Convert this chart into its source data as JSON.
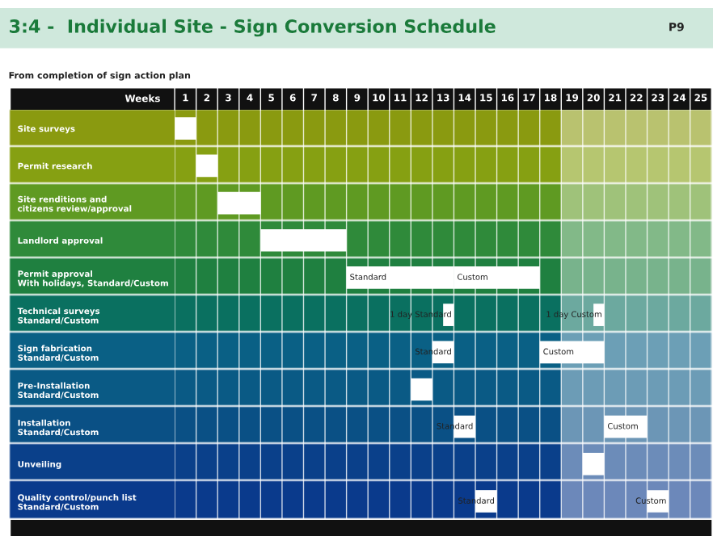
{
  "chart_data": {
    "type": "bar",
    "orientation": "horizontal",
    "title": "3:4 -  Individual Site - Sign Conversion Schedule",
    "subtitle": "From completion of sign action plan",
    "xlabel": "Weeks",
    "annotations": [
      "P9"
    ],
    "categories": [
      "Site surveys",
      "Permit research",
      "Site renditions and\ncitizens review/approval",
      "Landlord approval",
      "Permit approval\nWith holidays, Standard/Custom",
      "Technical surveys\nStandard/Custom",
      "Sign fabrication\nStandard/Custom",
      "Pre-Installation\nStandard/Custom",
      "Installation\nStandard/Custom",
      "Unveiling",
      "Quality control/punch list\nStandard/Custom"
    ],
    "series": [
      {
        "color": "#ffffff",
        "base": [
          0,
          1,
          2,
          4,
          8,
          12.5,
          12,
          11,
          13,
          19,
          14
        ],
        "values": [
          1,
          1,
          2,
          4,
          5,
          0.5,
          1,
          1,
          1,
          1,
          1
        ],
        "value_labels": [
          null,
          null,
          null,
          null,
          "Standard",
          "1 day Standard",
          "Standard",
          null,
          "Standard",
          null,
          "Standard"
        ]
      },
      {
        "color": "#ffffff",
        "base": [
          null,
          null,
          null,
          null,
          13,
          19.5,
          17,
          null,
          20,
          null,
          22
        ],
        "values": [
          null,
          null,
          null,
          null,
          4,
          0.5,
          3,
          null,
          2,
          null,
          1
        ],
        "value_labels": [
          null,
          null,
          null,
          null,
          "Custom",
          "1 day Custom",
          "Custom",
          null,
          "Custom",
          null,
          "Custom"
        ]
      }
    ],
    "xlim": [
      0,
      25
    ],
    "xticks": [
      {
        "value": 0.5,
        "label": "1"
      },
      {
        "value": 1.5,
        "label": "2"
      },
      {
        "value": 2.5,
        "label": "3"
      },
      {
        "value": 3.5,
        "label": "4"
      },
      {
        "value": 4.5,
        "label": "5"
      },
      {
        "value": 5.5,
        "label": "6"
      },
      {
        "value": 6.5,
        "label": "7"
      },
      {
        "value": 7.5,
        "label": "8"
      },
      {
        "value": 8.5,
        "label": "9"
      },
      {
        "value": 9.5,
        "label": "10"
      },
      {
        "value": 10.5,
        "label": "11"
      },
      {
        "value": 11.5,
        "label": "12"
      },
      {
        "value": 12.5,
        "label": "13"
      },
      {
        "value": 13.5,
        "label": "14"
      },
      {
        "value": 14.5,
        "label": "15"
      },
      {
        "value": 15.5,
        "label": "16"
      },
      {
        "value": 16.5,
        "label": "17"
      },
      {
        "value": 17.5,
        "label": "18"
      },
      {
        "value": 18.5,
        "label": "19"
      },
      {
        "value": 19.5,
        "label": "20"
      },
      {
        "value": 20.5,
        "label": "21"
      },
      {
        "value": 21.5,
        "label": "22"
      },
      {
        "value": 22.5,
        "label": "23"
      },
      {
        "value": 23.5,
        "label": "24"
      },
      {
        "value": 24.5,
        "label": "25"
      }
    ],
    "bands": [
      {
        "axis": "x",
        "from": 18,
        "to": 25,
        "color": "#ffffff"
      }
    ],
    "grid": "x"
  }
}
